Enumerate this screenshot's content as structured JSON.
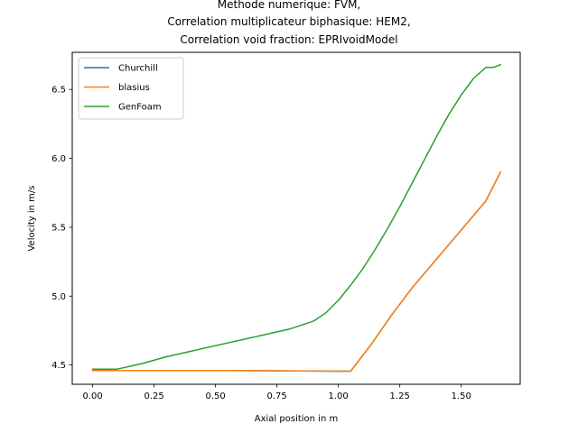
{
  "chart_data": {
    "type": "line",
    "title_lines": [
      "Methode numerique: FVM,",
      "Correlation multiplicateur biphasique: HEM2,",
      "Correlation void fraction: EPRIvoidModel"
    ],
    "xlabel": "Axial position in m",
    "ylabel": "Velocity in m/s",
    "xlim": [
      -0.083,
      1.74
    ],
    "ylim": [
      4.36,
      6.77
    ],
    "xticks": [
      0.0,
      0.25,
      0.5,
      0.75,
      1.0,
      1.25,
      1.5
    ],
    "xtick_labels": [
      "0.00",
      "0.25",
      "0.50",
      "0.75",
      "1.00",
      "1.25",
      "1.50"
    ],
    "yticks": [
      4.5,
      5.0,
      5.5,
      6.0,
      6.5
    ],
    "ytick_labels": [
      "4.5",
      "5.0",
      "5.5",
      "6.0",
      "6.5"
    ],
    "grid": false,
    "legend_position": "top-left",
    "series": [
      {
        "name": "Churchill",
        "color": "#1f77b4",
        "x": [
          0.0,
          0.1,
          0.5,
          1.0,
          1.05,
          1.13,
          1.22,
          1.3,
          1.4,
          1.5,
          1.6,
          1.66
        ],
        "y": [
          4.46,
          4.46,
          4.46,
          4.455,
          4.455,
          4.64,
          4.87,
          5.06,
          5.27,
          5.48,
          5.69,
          5.9
        ]
      },
      {
        "name": "blasius",
        "color": "#ff7f0e",
        "x": [
          0.0,
          0.1,
          0.5,
          1.0,
          1.05,
          1.13,
          1.22,
          1.3,
          1.4,
          1.5,
          1.6,
          1.66
        ],
        "y": [
          4.46,
          4.46,
          4.46,
          4.455,
          4.455,
          4.64,
          4.87,
          5.06,
          5.27,
          5.48,
          5.69,
          5.9
        ]
      },
      {
        "name": "GenFoam",
        "color": "#2ca02c",
        "x": [
          0.0,
          0.1,
          0.2,
          0.3,
          0.4,
          0.5,
          0.6,
          0.7,
          0.8,
          0.9,
          0.95,
          1.0,
          1.05,
          1.1,
          1.15,
          1.2,
          1.25,
          1.3,
          1.35,
          1.4,
          1.45,
          1.5,
          1.55,
          1.6,
          1.63,
          1.66
        ],
        "y": [
          4.47,
          4.47,
          4.51,
          4.56,
          4.6,
          4.64,
          4.68,
          4.72,
          4.76,
          4.82,
          4.88,
          4.97,
          5.08,
          5.2,
          5.34,
          5.49,
          5.65,
          5.82,
          5.99,
          6.16,
          6.32,
          6.46,
          6.58,
          6.66,
          6.66,
          6.68
        ]
      }
    ]
  }
}
